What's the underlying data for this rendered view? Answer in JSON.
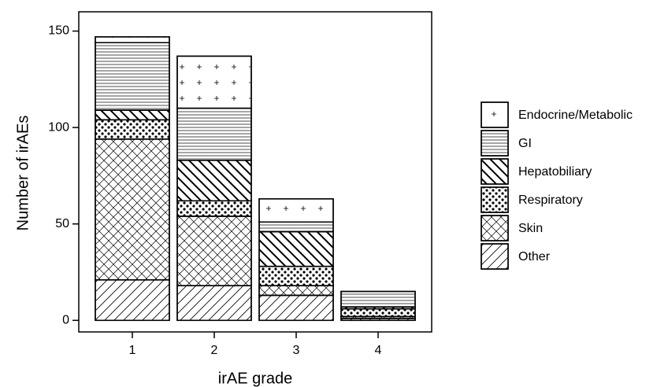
{
  "chart_data": {
    "type": "stacked_bar",
    "x_label": "irAE grade",
    "y_label": "Number of irAEs",
    "categories": [
      "1",
      "2",
      "3",
      "4"
    ],
    "series": [
      {
        "name": "Other",
        "color": "#000000",
        "pattern": "slash",
        "values": [
          21,
          18,
          13,
          1
        ]
      },
      {
        "name": "Skin",
        "color": "#000000",
        "pattern": "crosshatch",
        "values": [
          73,
          36,
          5,
          1
        ]
      },
      {
        "name": "Respiratory",
        "color": "#000000",
        "pattern": "dots",
        "values": [
          10,
          8,
          10,
          4
        ]
      },
      {
        "name": "Hepatobiliary",
        "color": "#000000",
        "pattern": "backslash",
        "values": [
          5,
          21,
          18,
          1
        ]
      },
      {
        "name": "GI",
        "color": "#000000",
        "pattern": "horizontal",
        "values": [
          35,
          27,
          5,
          8
        ]
      },
      {
        "name": "Endocrine/Metabolic",
        "color": "#000000",
        "pattern": "plus",
        "values": [
          3,
          27,
          12,
          0
        ]
      }
    ],
    "ylim": [
      -6,
      160
    ],
    "yticks": [
      0,
      50,
      100,
      150
    ]
  }
}
